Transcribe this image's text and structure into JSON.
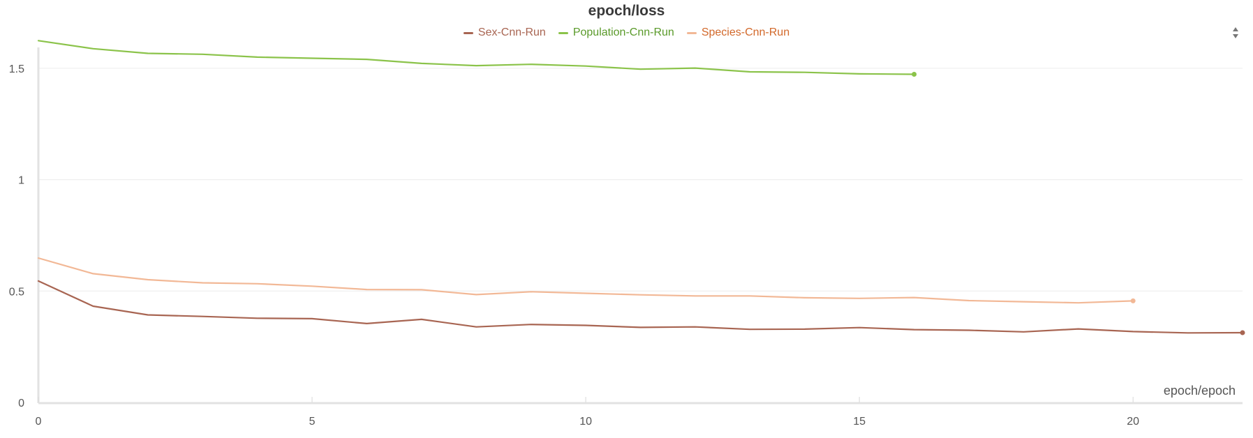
{
  "chart_data": {
    "type": "line",
    "title": "epoch/loss",
    "xlabel": "epoch/epoch",
    "ylabel": "",
    "xlim": [
      0,
      22
    ],
    "ylim": [
      0,
      1.65
    ],
    "xticks": [
      0,
      5,
      10,
      15,
      20
    ],
    "yticks": [
      0,
      0.5,
      1,
      1.5
    ],
    "ytick_labels": [
      "0",
      "0.5",
      "1",
      "1.5"
    ],
    "grid": "horizontal",
    "legend_position": "top-center",
    "series": [
      {
        "name": "Sex-Cnn-Run",
        "color": "#a86552",
        "x": [
          0,
          1,
          2,
          3,
          4,
          5,
          6,
          7,
          8,
          9,
          10,
          11,
          12,
          13,
          14,
          15,
          16,
          17,
          18,
          19,
          20,
          21,
          22
        ],
        "values": [
          0.545,
          0.432,
          0.393,
          0.386,
          0.378,
          0.376,
          0.354,
          0.373,
          0.339,
          0.35,
          0.346,
          0.337,
          0.339,
          0.328,
          0.329,
          0.336,
          0.327,
          0.324,
          0.317,
          0.33,
          0.318,
          0.312,
          0.313
        ]
      },
      {
        "name": "Population-Cnn-Run",
        "color": "#8bc34a",
        "x": [
          0,
          1,
          2,
          3,
          4,
          5,
          6,
          7,
          8,
          9,
          10,
          11,
          12,
          13,
          14,
          15,
          16
        ],
        "values": [
          1.624,
          1.588,
          1.567,
          1.563,
          1.55,
          1.545,
          1.54,
          1.522,
          1.512,
          1.518,
          1.51,
          1.496,
          1.501,
          1.484,
          1.482,
          1.475,
          1.473
        ]
      },
      {
        "name": "Species-Cnn-Run",
        "color": "#f2b896",
        "x": [
          0,
          1,
          2,
          3,
          4,
          5,
          6,
          7,
          8,
          9,
          10,
          11,
          12,
          13,
          14,
          15,
          16,
          17,
          18,
          19,
          20
        ],
        "values": [
          0.648,
          0.578,
          0.551,
          0.537,
          0.533,
          0.522,
          0.507,
          0.506,
          0.484,
          0.497,
          0.49,
          0.483,
          0.478,
          0.478,
          0.47,
          0.467,
          0.471,
          0.457,
          0.452,
          0.447,
          0.456
        ]
      }
    ],
    "legend_text_colors": [
      "#a86552",
      "#5a9a2a",
      "#d2682a"
    ]
  }
}
